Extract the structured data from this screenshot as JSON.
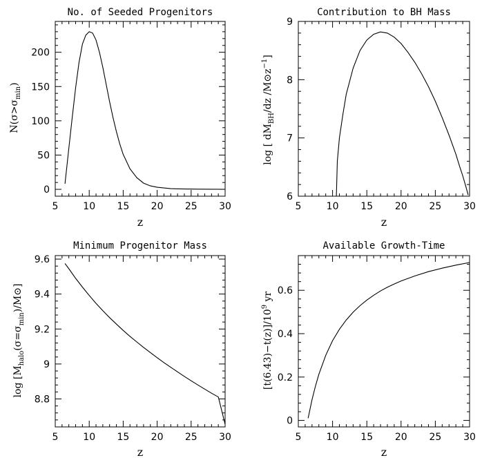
{
  "chart_data": [
    {
      "type": "line",
      "title": "No. of Seeded Progenitors",
      "xlabel": "z",
      "ylabel": "N(σ>σ_min)",
      "xlim": [
        5,
        30
      ],
      "ylim": [
        -10,
        245
      ],
      "xticks": [
        5,
        10,
        15,
        20,
        25,
        30
      ],
      "yticks": [
        0,
        50,
        100,
        150,
        200
      ],
      "grid": false,
      "series": [
        {
          "x": [
            6.43,
            7,
            7.5,
            8,
            8.5,
            9,
            9.5,
            10,
            10.5,
            11,
            11.5,
            12,
            12.5,
            13,
            13.5,
            14,
            14.5,
            15,
            16,
            17,
            18,
            19,
            20,
            21,
            22,
            24,
            26,
            28,
            30
          ],
          "y": [
            8,
            60,
            105,
            148,
            185,
            212,
            225,
            230,
            228,
            218,
            200,
            178,
            153,
            128,
            105,
            84,
            66,
            51,
            30,
            17,
            9,
            5,
            3,
            2,
            1,
            0.5,
            0.3,
            0.2,
            0.1
          ]
        }
      ]
    },
    {
      "type": "line",
      "title": "Contribution to BH Mass",
      "xlabel": "z",
      "ylabel": "log [ dM_BH/dz /M⊙z⁻¹]",
      "xlim": [
        5,
        30
      ],
      "ylim": [
        6,
        9
      ],
      "xticks": [
        5,
        10,
        15,
        20,
        25,
        30
      ],
      "yticks": [
        6,
        7,
        8,
        9
      ],
      "grid": false,
      "series": [
        {
          "x": [
            10.55,
            10.7,
            11,
            11.5,
            12,
            13,
            14,
            15,
            16,
            17,
            18,
            19,
            20,
            21,
            22,
            23,
            24,
            25,
            26,
            27,
            28,
            28.5,
            29,
            29.5,
            29.8
          ],
          "y": [
            6.0,
            6.6,
            7.0,
            7.4,
            7.75,
            8.2,
            8.5,
            8.68,
            8.78,
            8.82,
            8.8,
            8.73,
            8.62,
            8.47,
            8.3,
            8.1,
            7.88,
            7.63,
            7.35,
            7.05,
            6.72,
            6.53,
            6.35,
            6.15,
            6.02
          ]
        }
      ]
    },
    {
      "type": "line",
      "title": "Minimum Progenitor Mass",
      "xlabel": "z",
      "ylabel": "log [M_halo(σ=σ_min)/M⊙]",
      "xlim": [
        5,
        30
      ],
      "ylim": [
        8.64,
        9.62
      ],
      "xticks": [
        5,
        10,
        15,
        20,
        25,
        30
      ],
      "yticks": [
        8.8,
        9,
        9.2,
        9.4,
        9.6
      ],
      "grid": false,
      "series": [
        {
          "x": [
            6.43,
            7,
            8,
            9,
            10,
            11,
            12,
            13,
            14,
            15,
            16,
            17,
            18,
            19,
            20,
            21,
            22,
            23,
            24,
            25,
            26,
            27,
            28,
            29,
            30
          ],
          "y": [
            9.575,
            9.545,
            9.49,
            9.44,
            9.392,
            9.347,
            9.305,
            9.265,
            9.228,
            9.192,
            9.158,
            9.126,
            9.095,
            9.065,
            9.036,
            9.008,
            8.981,
            8.955,
            8.929,
            8.904,
            8.88,
            8.856,
            8.833,
            8.811,
            8.655
          ]
        }
      ]
    },
    {
      "type": "line",
      "title": "Available Growth-Time",
      "xlabel": "z",
      "ylabel": "[t(6.43)−t(z)]/10⁹ yr",
      "xlim": [
        5,
        30
      ],
      "ylim": [
        -0.03,
        0.76
      ],
      "xticks": [
        5,
        10,
        15,
        20,
        25,
        30
      ],
      "yticks": [
        0,
        0.2,
        0.4,
        0.6
      ],
      "grid": false,
      "series": [
        {
          "x": [
            6.43,
            7,
            7.5,
            8,
            9,
            10,
            11,
            12,
            13,
            14,
            15,
            16,
            17,
            18,
            19,
            20,
            22,
            24,
            26,
            28,
            30
          ],
          "y": [
            0.01,
            0.095,
            0.158,
            0.213,
            0.3,
            0.368,
            0.42,
            0.463,
            0.499,
            0.529,
            0.555,
            0.577,
            0.597,
            0.614,
            0.629,
            0.643,
            0.666,
            0.686,
            0.702,
            0.716,
            0.728
          ]
        }
      ]
    }
  ]
}
